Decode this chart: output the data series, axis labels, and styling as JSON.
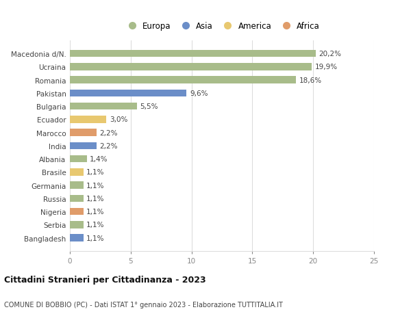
{
  "categories": [
    "Bangladesh",
    "Serbia",
    "Nigeria",
    "Russia",
    "Germania",
    "Brasile",
    "Albania",
    "India",
    "Marocco",
    "Ecuador",
    "Bulgaria",
    "Pakistan",
    "Romania",
    "Ucraina",
    "Macedonia d/N."
  ],
  "values": [
    1.1,
    1.1,
    1.1,
    1.1,
    1.1,
    1.1,
    1.4,
    2.2,
    2.2,
    3.0,
    5.5,
    9.6,
    18.6,
    19.9,
    20.2
  ],
  "labels": [
    "1,1%",
    "1,1%",
    "1,1%",
    "1,1%",
    "1,1%",
    "1,1%",
    "1,4%",
    "2,2%",
    "2,2%",
    "3,0%",
    "5,5%",
    "9,6%",
    "18,6%",
    "19,9%",
    "20,2%"
  ],
  "colors": [
    "#6b8ec8",
    "#a8bc8a",
    "#e09c6a",
    "#a8bc8a",
    "#a8bc8a",
    "#e8c870",
    "#a8bc8a",
    "#6b8ec8",
    "#e09c6a",
    "#e8c870",
    "#a8bc8a",
    "#6b8ec8",
    "#a8bc8a",
    "#a8bc8a",
    "#a8bc8a"
  ],
  "continents": [
    "Asia",
    "Europa",
    "Africa",
    "Europa",
    "Europa",
    "America",
    "Europa",
    "Asia",
    "Africa",
    "America",
    "Europa",
    "Asia",
    "Europa",
    "Europa",
    "Europa"
  ],
  "legend_labels": [
    "Europa",
    "Asia",
    "America",
    "Africa"
  ],
  "legend_colors": [
    "#a8bc8a",
    "#6b8ec8",
    "#e8c870",
    "#e09c6a"
  ],
  "title": "Cittadini Stranieri per Cittadinanza - 2023",
  "subtitle": "COMUNE DI BOBBIO (PC) - Dati ISTAT 1° gennaio 2023 - Elaborazione TUTTITALIA.IT",
  "xlim": [
    0,
    25
  ],
  "xticks": [
    0,
    5,
    10,
    15,
    20,
    25
  ],
  "bg_color": "#ffffff",
  "grid_color": "#dddddd"
}
